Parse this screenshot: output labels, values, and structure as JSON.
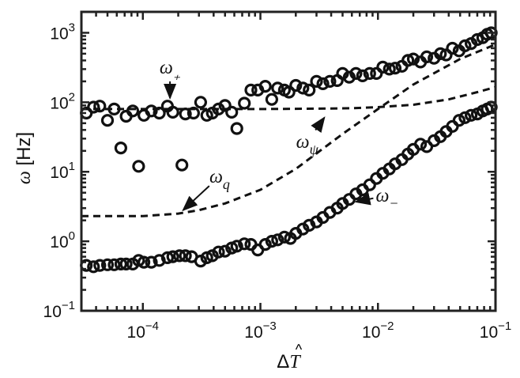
{
  "chart_data": {
    "type": "scatter",
    "title": "",
    "x_scale": "log",
    "y_scale": "log",
    "xlim": [
      3e-05,
      0.1
    ],
    "ylim": [
      0.1,
      2000
    ],
    "grid": false,
    "xlabel": {
      "base": "Δ",
      "symbol": "T"
    },
    "ylabel": {
      "symbol": "ω",
      "unit": " [Hz]"
    },
    "x_ticks": [
      {
        "value": 0.0001,
        "base": "10",
        "exp": "−4"
      },
      {
        "value": 0.001,
        "base": "10",
        "exp": "−3"
      },
      {
        "value": 0.01,
        "base": "10",
        "exp": "−2"
      },
      {
        "value": 0.1,
        "base": "10",
        "exp": "−1"
      }
    ],
    "y_ticks": [
      {
        "value": 0.1,
        "base": "10",
        "exp": "−1"
      },
      {
        "value": 1,
        "base": "10",
        "exp": "0"
      },
      {
        "value": 10,
        "base": "10",
        "exp": "1"
      },
      {
        "value": 100,
        "base": "10",
        "exp": "2"
      },
      {
        "value": 1000,
        "base": "10",
        "exp": "3"
      }
    ],
    "series": [
      {
        "name": "ω+",
        "style": "open-circle",
        "points": [
          [
            3.3e-05,
            70
          ],
          [
            3.8e-05,
            85
          ],
          [
            4.3e-05,
            88
          ],
          [
            5e-05,
            55
          ],
          [
            5.7e-05,
            80
          ],
          [
            6.5e-05,
            22
          ],
          [
            7.2e-05,
            63
          ],
          [
            8.2e-05,
            75
          ],
          [
            9.2e-05,
            12
          ],
          [
            0.000102,
            65
          ],
          [
            0.000118,
            75
          ],
          [
            0.000138,
            70
          ],
          [
            0.000162,
            88
          ],
          [
            0.00018,
            72
          ],
          [
            0.000215,
            12.5
          ],
          [
            0.00023,
            68
          ],
          [
            0.00027,
            70
          ],
          [
            0.00031,
            100
          ],
          [
            0.00035,
            65
          ],
          [
            0.00039,
            70
          ],
          [
            0.00044,
            80
          ],
          [
            0.0005,
            90
          ],
          [
            0.00057,
            72
          ],
          [
            0.00063,
            42
          ],
          [
            0.00073,
            97
          ],
          [
            0.00083,
            150
          ],
          [
            0.00095,
            150
          ],
          [
            0.0011,
            170
          ],
          [
            0.00125,
            110
          ],
          [
            0.0014,
            160
          ],
          [
            0.0016,
            150
          ],
          [
            0.00175,
            140
          ],
          [
            0.002,
            175
          ],
          [
            0.0023,
            160
          ],
          [
            0.0026,
            150
          ],
          [
            0.003,
            200
          ],
          [
            0.0034,
            185
          ],
          [
            0.0039,
            200
          ],
          [
            0.0045,
            205
          ],
          [
            0.005,
            260
          ],
          [
            0.0057,
            230
          ],
          [
            0.0065,
            260
          ],
          [
            0.0074,
            240
          ],
          [
            0.0085,
            260
          ],
          [
            0.0097,
            260
          ],
          [
            0.011,
            320
          ],
          [
            0.0125,
            300
          ],
          [
            0.014,
            310
          ],
          [
            0.016,
            330
          ],
          [
            0.018,
            400
          ],
          [
            0.02,
            420
          ],
          [
            0.023,
            380
          ],
          [
            0.026,
            450
          ],
          [
            0.03,
            430
          ],
          [
            0.034,
            500
          ],
          [
            0.038,
            480
          ],
          [
            0.043,
            600
          ],
          [
            0.049,
            550
          ],
          [
            0.055,
            650
          ],
          [
            0.062,
            700
          ],
          [
            0.07,
            800
          ],
          [
            0.078,
            850
          ],
          [
            0.085,
            950
          ],
          [
            0.092,
            1000
          ]
        ]
      },
      {
        "name": "ω−",
        "style": "open-circle",
        "points": [
          [
            3.3e-05,
            0.45
          ],
          [
            3.8e-05,
            0.43
          ],
          [
            4.3e-05,
            0.45
          ],
          [
            5e-05,
            0.46
          ],
          [
            5.7e-05,
            0.46
          ],
          [
            6.5e-05,
            0.47
          ],
          [
            7.2e-05,
            0.47
          ],
          [
            8.2e-05,
            0.47
          ],
          [
            9.2e-05,
            0.53
          ],
          [
            0.000102,
            0.5
          ],
          [
            0.000118,
            0.5
          ],
          [
            0.000138,
            0.53
          ],
          [
            0.000162,
            0.58
          ],
          [
            0.00018,
            0.6
          ],
          [
            0.000205,
            0.62
          ],
          [
            0.00023,
            0.62
          ],
          [
            0.00026,
            0.6
          ],
          [
            0.00031,
            0.52
          ],
          [
            0.00035,
            0.58
          ],
          [
            0.00039,
            0.62
          ],
          [
            0.00044,
            0.7
          ],
          [
            0.0005,
            0.72
          ],
          [
            0.00057,
            0.8
          ],
          [
            0.00063,
            0.85
          ],
          [
            0.00073,
            0.92
          ],
          [
            0.00083,
            0.9
          ],
          [
            0.00095,
            0.75
          ],
          [
            0.0011,
            0.9
          ],
          [
            0.00125,
            1.0
          ],
          [
            0.0014,
            1.05
          ],
          [
            0.0016,
            1.15
          ],
          [
            0.0018,
            1.1
          ],
          [
            0.002,
            1.3
          ],
          [
            0.0023,
            1.5
          ],
          [
            0.0026,
            1.7
          ],
          [
            0.003,
            1.9
          ],
          [
            0.0034,
            2.2
          ],
          [
            0.0039,
            2.6
          ],
          [
            0.0045,
            3.0
          ],
          [
            0.005,
            3.5
          ],
          [
            0.0057,
            4.0
          ],
          [
            0.0065,
            4.8
          ],
          [
            0.0074,
            5.5
          ],
          [
            0.0085,
            6.5
          ],
          [
            0.0097,
            8.0
          ],
          [
            0.011,
            9.5
          ],
          [
            0.0125,
            11
          ],
          [
            0.014,
            13
          ],
          [
            0.016,
            15
          ],
          [
            0.018,
            18
          ],
          [
            0.02,
            21
          ],
          [
            0.023,
            25
          ],
          [
            0.026,
            23
          ],
          [
            0.03,
            28
          ],
          [
            0.034,
            32
          ],
          [
            0.038,
            38
          ],
          [
            0.043,
            45
          ],
          [
            0.049,
            55
          ],
          [
            0.055,
            60
          ],
          [
            0.062,
            65
          ],
          [
            0.07,
            68
          ],
          [
            0.078,
            75
          ],
          [
            0.085,
            80
          ],
          [
            0.092,
            85
          ]
        ]
      },
      {
        "name": "ωψ",
        "style": "dashed",
        "points": [
          [
            3e-05,
            80
          ],
          [
            0.0001,
            80
          ],
          [
            0.0003,
            80
          ],
          [
            0.001,
            80
          ],
          [
            0.003,
            81
          ],
          [
            0.006,
            82
          ],
          [
            0.01,
            85
          ],
          [
            0.02,
            92
          ],
          [
            0.04,
            110
          ],
          [
            0.07,
            140
          ],
          [
            0.1,
            165
          ]
        ]
      },
      {
        "name": "ωq",
        "style": "dashed",
        "points": [
          [
            3e-05,
            2.3
          ],
          [
            0.0001,
            2.3
          ],
          [
            0.0002,
            2.5
          ],
          [
            0.0003,
            2.8
          ],
          [
            0.0005,
            3.5
          ],
          [
            0.001,
            5.5
          ],
          [
            0.002,
            11
          ],
          [
            0.005,
            35
          ],
          [
            0.01,
            80
          ],
          [
            0.02,
            180
          ],
          [
            0.05,
            420
          ],
          [
            0.1,
            680
          ]
        ]
      }
    ],
    "annotations": [
      {
        "label": "ω₊",
        "x": 0.00017,
        "y": 260,
        "arrow_to": [
          0.00017,
          115
        ]
      },
      {
        "label": "ωψ",
        "x": 0.0025,
        "y": 22,
        "arrow_to": [
          0.0035,
          60
        ]
      },
      {
        "label": "ωq",
        "x": 0.00045,
        "y": 7,
        "arrow_to": [
          0.00022,
          2.8
        ]
      },
      {
        "label": "ω−",
        "x": 0.012,
        "y": 3.7,
        "arrow_to": [
          0.0065,
          3.7
        ]
      }
    ]
  }
}
